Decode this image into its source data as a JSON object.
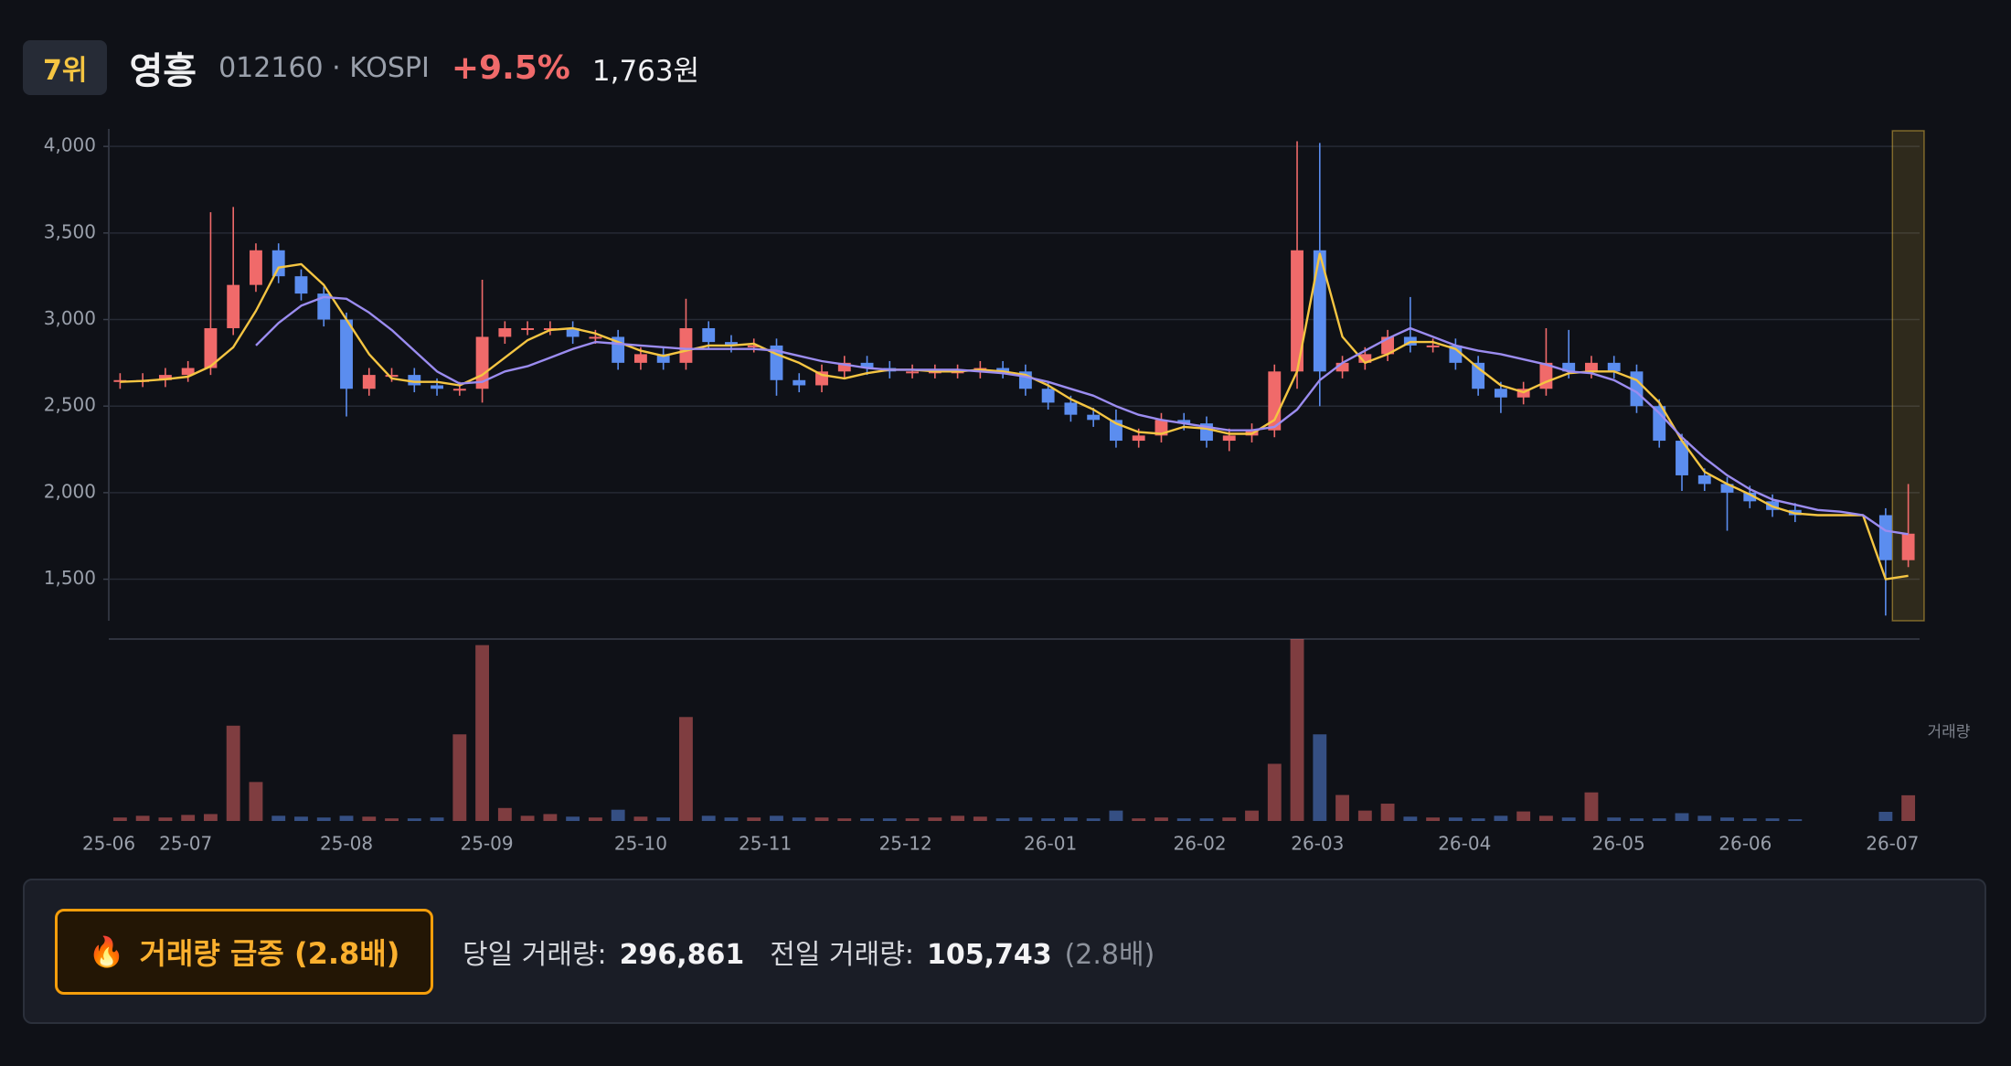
{
  "header": {
    "rank": "7위",
    "name": "영흥",
    "code": "012160 · KOSPI",
    "change": "+9.5%",
    "price": "1,763원"
  },
  "footer": {
    "badge_icon": "🔥",
    "badge": "거래량 급증 (2.8배)",
    "today_label": "당일 거래량:",
    "today_value": "296,861",
    "prev_label": "전일 거래량:",
    "prev_value": "105,743",
    "ratio": "(2.8배)"
  },
  "chart_data": {
    "type": "candlestick",
    "up_color": "#f06a6a",
    "down_color": "#5b8def",
    "grid": true,
    "highlight_color": "#f5c542",
    "xlim": [
      0,
      80
    ],
    "xticks": [
      {
        "value": 0,
        "label": "25-06"
      },
      {
        "value": 3.4,
        "label": "25-07"
      },
      {
        "value": 10.5,
        "label": "25-08"
      },
      {
        "value": 16.7,
        "label": "25-09"
      },
      {
        "value": 23.5,
        "label": "25-10"
      },
      {
        "value": 29.0,
        "label": "25-11"
      },
      {
        "value": 35.2,
        "label": "25-12"
      },
      {
        "value": 41.6,
        "label": "26-01"
      },
      {
        "value": 48.2,
        "label": "26-02"
      },
      {
        "value": 53.4,
        "label": "26-03"
      },
      {
        "value": 59.9,
        "label": "26-04"
      },
      {
        "value": 66.7,
        "label": "26-05"
      },
      {
        "value": 72.3,
        "label": "26-06"
      },
      {
        "value": 78.8,
        "label": "26-07"
      }
    ],
    "ylim": [
      1260,
      4080
    ],
    "yticks": [
      {
        "value": 1500,
        "label": "1,500"
      },
      {
        "value": 2000,
        "label": "2,000"
      },
      {
        "value": 2500,
        "label": "2,500"
      },
      {
        "value": 3000,
        "label": "3,000"
      },
      {
        "value": 3500,
        "label": "3,500"
      },
      {
        "value": 4000,
        "label": "4,000"
      }
    ],
    "open": [
      2640,
      2650,
      2650,
      2680,
      2720,
      2950,
      3200,
      3400,
      3250,
      3150,
      3000,
      2600,
      2680,
      2680,
      2620,
      2600,
      2600,
      2900,
      2950,
      2950,
      2950,
      2900,
      2900,
      2750,
      2800,
      2750,
      2950,
      2870,
      2850,
      2850,
      2650,
      2620,
      2700,
      2750,
      2720,
      2700,
      2700,
      2700,
      2700,
      2720,
      2700,
      2600,
      2520,
      2450,
      2420,
      2300,
      2330,
      2420,
      2400,
      2300,
      2330,
      2360,
      2700,
      3400,
      2700,
      2750,
      2800,
      2900,
      2850,
      2850,
      2750,
      2600,
      2550,
      2600,
      2750,
      2700,
      2750,
      2700,
      2500,
      2300,
      2100,
      2050,
      2000,
      1950,
      1900,
      null,
      null,
      null,
      1870,
      1610
    ],
    "high": [
      2690,
      2690,
      2720,
      2760,
      3620,
      3650,
      3440,
      3440,
      3290,
      3190,
      3040,
      2720,
      2720,
      2720,
      2660,
      2640,
      3230,
      2990,
      2990,
      2990,
      2990,
      2940,
      2940,
      2840,
      2840,
      3120,
      2990,
      2910,
      2890,
      2890,
      2690,
      2740,
      2790,
      2790,
      2760,
      2740,
      2740,
      2740,
      2760,
      2760,
      2740,
      2640,
      2560,
      2490,
      2480,
      2370,
      2460,
      2460,
      2440,
      2370,
      2400,
      2740,
      4030,
      4020,
      2790,
      2840,
      2940,
      3130,
      2890,
      2890,
      2790,
      2640,
      2640,
      2950,
      2940,
      2790,
      2790,
      2740,
      2540,
      2340,
      2140,
      2090,
      2040,
      1990,
      1940,
      null,
      null,
      null,
      1910,
      2050
    ],
    "low": [
      2600,
      2610,
      2610,
      2640,
      2680,
      2910,
      3160,
      3210,
      3110,
      2960,
      2440,
      2560,
      2640,
      2580,
      2560,
      2560,
      2520,
      2860,
      2910,
      2910,
      2860,
      2860,
      2710,
      2710,
      2710,
      2710,
      2830,
      2810,
      2810,
      2560,
      2580,
      2580,
      2660,
      2680,
      2660,
      2660,
      2660,
      2660,
      2660,
      2660,
      2560,
      2480,
      2410,
      2380,
      2260,
      2260,
      2290,
      2360,
      2260,
      2240,
      2290,
      2320,
      2600,
      2500,
      2660,
      2710,
      2760,
      2810,
      2810,
      2710,
      2560,
      2460,
      2510,
      2560,
      2660,
      2660,
      2660,
      2460,
      2260,
      2010,
      2010,
      1780,
      1910,
      1860,
      1830,
      null,
      null,
      null,
      1290,
      1570
    ],
    "close": [
      2650,
      2650,
      2680,
      2720,
      2950,
      3200,
      3400,
      3250,
      3150,
      3000,
      2600,
      2680,
      2680,
      2620,
      2600,
      2600,
      2900,
      2950,
      2950,
      2950,
      2900,
      2900,
      2750,
      2800,
      2750,
      2950,
      2870,
      2850,
      2850,
      2650,
      2620,
      2700,
      2750,
      2720,
      2700,
      2700,
      2700,
      2700,
      2720,
      2700,
      2600,
      2520,
      2450,
      2420,
      2300,
      2330,
      2420,
      2400,
      2300,
      2330,
      2360,
      2700,
      3400,
      2700,
      2750,
      2800,
      2900,
      2850,
      2850,
      2750,
      2600,
      2550,
      2600,
      2750,
      2700,
      2750,
      2700,
      2500,
      2300,
      2100,
      2050,
      2000,
      1950,
      1900,
      1870,
      null,
      null,
      null,
      1610,
      1763
    ],
    "ma": [
      {
        "color": "#f5c542",
        "values": [
          2640,
          2645,
          2655,
          2670,
          2730,
          2840,
          3050,
          3300,
          3320,
          3200,
          3000,
          2800,
          2660,
          2640,
          2640,
          2620,
          2680,
          2780,
          2880,
          2940,
          2950,
          2920,
          2870,
          2820,
          2790,
          2820,
          2850,
          2850,
          2860,
          2800,
          2750,
          2680,
          2660,
          2690,
          2710,
          2710,
          2700,
          2700,
          2710,
          2700,
          2680,
          2620,
          2540,
          2480,
          2400,
          2350,
          2340,
          2380,
          2370,
          2340,
          2340,
          2420,
          2700,
          3380,
          2900,
          2750,
          2800,
          2870,
          2870,
          2830,
          2720,
          2620,
          2580,
          2640,
          2690,
          2700,
          2700,
          2650,
          2520,
          2300,
          2120,
          2050,
          1990,
          1920,
          1880,
          1870,
          1870,
          1870,
          1500,
          1520
        ]
      },
      {
        "color": "#9b8cf0",
        "values": [
          null,
          null,
          null,
          null,
          null,
          null,
          2850,
          2980,
          3080,
          3130,
          3120,
          3040,
          2940,
          2820,
          2700,
          2630,
          2640,
          2700,
          2730,
          2780,
          2830,
          2870,
          2860,
          2850,
          2840,
          2830,
          2830,
          2830,
          2830,
          2820,
          2790,
          2760,
          2740,
          2720,
          2710,
          2710,
          2710,
          2710,
          2700,
          2690,
          2670,
          2640,
          2600,
          2560,
          2500,
          2450,
          2420,
          2400,
          2380,
          2360,
          2360,
          2380,
          2480,
          2650,
          2750,
          2820,
          2890,
          2950,
          2900,
          2850,
          2820,
          2800,
          2770,
          2740,
          2700,
          2690,
          2650,
          2580,
          2460,
          2320,
          2200,
          2100,
          2020,
          1960,
          1930,
          1900,
          1890,
          1870,
          1780,
          1760
        ]
      }
    ],
    "volume": {
      "label": "거래량",
      "ylim": [
        0,
        2100000
      ],
      "values": [
        40000,
        60000,
        40000,
        70000,
        80000,
        1100000,
        450000,
        60000,
        50000,
        40000,
        60000,
        50000,
        30000,
        30000,
        40000,
        1000000,
        2030000,
        150000,
        60000,
        80000,
        50000,
        40000,
        130000,
        50000,
        40000,
        1200000,
        60000,
        40000,
        40000,
        60000,
        40000,
        40000,
        30000,
        30000,
        30000,
        30000,
        40000,
        60000,
        50000,
        30000,
        40000,
        30000,
        40000,
        30000,
        120000,
        30000,
        40000,
        30000,
        30000,
        40000,
        120000,
        660000,
        2100000,
        1000000,
        300000,
        120000,
        200000,
        50000,
        40000,
        40000,
        30000,
        60000,
        110000,
        60000,
        40000,
        330000,
        40000,
        30000,
        30000,
        90000,
        60000,
        40000,
        30000,
        30000,
        20000,
        null,
        null,
        null,
        105743,
        296861
      ]
    }
  }
}
